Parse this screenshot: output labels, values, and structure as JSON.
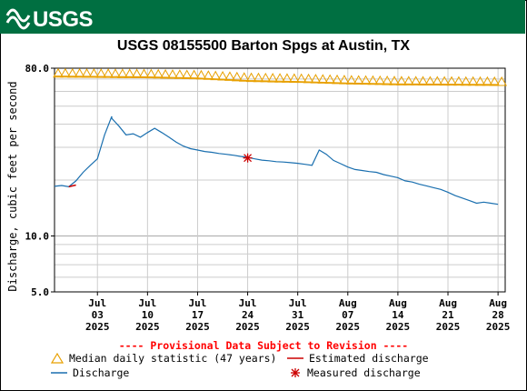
{
  "header": {
    "agency_logo_text": "USGS",
    "banner_color": "#006f41"
  },
  "chart_data": {
    "type": "line",
    "title": "USGS 08155500 Barton Spgs at Austin, TX",
    "ylabel": "Discharge, cubic feet per second",
    "xlabel": "",
    "yscale": "log",
    "ylim": [
      5.0,
      80.0
    ],
    "xlim": [
      "2025-06-27",
      "2025-08-29"
    ],
    "grid": true,
    "y_tick_labels": [
      "80.0",
      "10.0",
      "5.0"
    ],
    "x_ticks": [
      {
        "date": "2025-07-03",
        "month": "Jul",
        "day": "03",
        "year": "2025"
      },
      {
        "date": "2025-07-10",
        "month": "Jul",
        "day": "10",
        "year": "2025"
      },
      {
        "date": "2025-07-17",
        "month": "Jul",
        "day": "17",
        "year": "2025"
      },
      {
        "date": "2025-07-24",
        "month": "Jul",
        "day": "24",
        "year": "2025"
      },
      {
        "date": "2025-07-31",
        "month": "Jul",
        "day": "31",
        "year": "2025"
      },
      {
        "date": "2025-08-07",
        "month": "Aug",
        "day": "07",
        "year": "2025"
      },
      {
        "date": "2025-08-14",
        "month": "Aug",
        "day": "14",
        "year": "2025"
      },
      {
        "date": "2025-08-21",
        "month": "Aug",
        "day": "21",
        "year": "2025"
      },
      {
        "date": "2025-08-28",
        "month": "Aug",
        "day": "28",
        "year": "2025"
      }
    ],
    "series": [
      {
        "name": "Discharge",
        "color": "#1a6faf",
        "points": [
          [
            "2025-06-27",
            18.5
          ],
          [
            "2025-06-28",
            18.7
          ],
          [
            "2025-06-29",
            18.4
          ],
          [
            "2025-06-30",
            19.8
          ],
          [
            "2025-07-01",
            22.0
          ],
          [
            "2025-07-02",
            24.0
          ],
          [
            "2025-07-03",
            26.0
          ],
          [
            "2025-07-04",
            35.0
          ],
          [
            "2025-07-05",
            44.0
          ],
          [
            "2025-07-05",
            43.0
          ],
          [
            "2025-07-06",
            39.0
          ],
          [
            "2025-07-07",
            35.0
          ],
          [
            "2025-07-08",
            35.5
          ],
          [
            "2025-07-09",
            34.0
          ],
          [
            "2025-07-10",
            36.0
          ],
          [
            "2025-07-11",
            38.0
          ],
          [
            "2025-07-12",
            36.0
          ],
          [
            "2025-07-13",
            34.0
          ],
          [
            "2025-07-14",
            32.0
          ],
          [
            "2025-07-15",
            30.5
          ],
          [
            "2025-07-16",
            29.5
          ],
          [
            "2025-07-17",
            29.0
          ],
          [
            "2025-07-18",
            28.5
          ],
          [
            "2025-07-19",
            28.2
          ],
          [
            "2025-07-20",
            27.8
          ],
          [
            "2025-07-21",
            27.5
          ],
          [
            "2025-07-22",
            27.2
          ],
          [
            "2025-07-23",
            26.8
          ],
          [
            "2025-07-24",
            26.5
          ],
          [
            "2025-07-25",
            26.0
          ],
          [
            "2025-07-26",
            25.6
          ],
          [
            "2025-07-27",
            25.4
          ],
          [
            "2025-07-28",
            25.1
          ],
          [
            "2025-07-29",
            25.0
          ],
          [
            "2025-07-30",
            24.8
          ],
          [
            "2025-07-31",
            24.6
          ],
          [
            "2025-08-01",
            24.3
          ],
          [
            "2025-08-02",
            24.0
          ],
          [
            "2025-08-03",
            29.0
          ],
          [
            "2025-08-04",
            27.5
          ],
          [
            "2025-08-05",
            25.5
          ],
          [
            "2025-08-06",
            24.5
          ],
          [
            "2025-08-07",
            23.5
          ],
          [
            "2025-08-08",
            22.8
          ],
          [
            "2025-08-09",
            22.5
          ],
          [
            "2025-08-10",
            22.2
          ],
          [
            "2025-08-11",
            22.0
          ],
          [
            "2025-08-12",
            21.4
          ],
          [
            "2025-08-13",
            21.0
          ],
          [
            "2025-08-14",
            20.6
          ],
          [
            "2025-08-15",
            19.8
          ],
          [
            "2025-08-16",
            19.5
          ],
          [
            "2025-08-17",
            19.0
          ],
          [
            "2025-08-18",
            18.6
          ],
          [
            "2025-08-19",
            18.2
          ],
          [
            "2025-08-20",
            17.8
          ],
          [
            "2025-08-21",
            17.2
          ],
          [
            "2025-08-22",
            16.5
          ],
          [
            "2025-08-23",
            16.0
          ],
          [
            "2025-08-24",
            15.5
          ],
          [
            "2025-08-25",
            15.0
          ],
          [
            "2025-08-26",
            15.2
          ],
          [
            "2025-08-27",
            15.0
          ],
          [
            "2025-08-28",
            14.8
          ]
        ]
      },
      {
        "name": "Median daily statistic (47 years)",
        "color": "#e8a000",
        "points": [
          [
            "2025-06-27",
            72.5
          ],
          [
            "2025-07-03",
            72.2
          ],
          [
            "2025-07-10",
            71.8
          ],
          [
            "2025-07-17",
            70.8
          ],
          [
            "2025-07-24",
            68.6
          ],
          [
            "2025-07-31",
            67.8
          ],
          [
            "2025-08-07",
            66.5
          ],
          [
            "2025-08-14",
            65.8
          ],
          [
            "2025-08-21",
            65.6
          ],
          [
            "2025-08-28",
            65.3
          ]
        ]
      },
      {
        "name": "Estimated discharge",
        "color": "#cc0000",
        "points": [
          [
            "2025-06-29",
            18.4
          ],
          [
            "2025-06-30",
            18.8
          ]
        ]
      }
    ],
    "measured_discharge": [
      [
        "2025-07-24",
        26.3
      ]
    ]
  },
  "legend": {
    "provisional_text": "---- Provisional Data Subject to Revision ----",
    "items": [
      {
        "label": "Median daily statistic (47 years)"
      },
      {
        "label": "Estimated discharge"
      },
      {
        "label": "Discharge"
      },
      {
        "label": "Measured discharge"
      }
    ]
  }
}
